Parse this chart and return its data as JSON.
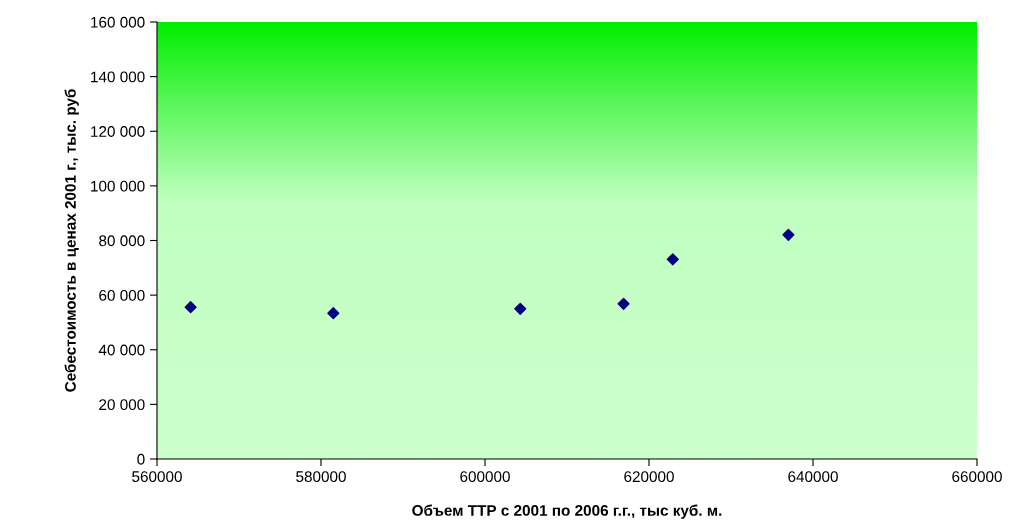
{
  "chart_data": {
    "type": "scatter",
    "xlabel": "Объем ТТР с 2001 по 2006 г.г., тыс куб. м.",
    "ylabel": "Себестоимость в ценах 2001 г., тыс. руб",
    "x": [
      564100,
      581500,
      604300,
      616900,
      622900,
      637000
    ],
    "series": [
      {
        "color": "#000080",
        "values": [
          55600,
          53400,
          55000,
          56800,
          73100,
          82100
        ]
      }
    ],
    "marker": "diamond",
    "grid": false,
    "legend": false,
    "xlim": [
      560000,
      660000
    ],
    "xticks": [
      560000,
      580000,
      600000,
      620000,
      640000,
      660000
    ],
    "ylim": [
      0,
      160000
    ],
    "yticks": [
      {
        "value": 0,
        "label": "0"
      },
      {
        "value": 20000,
        "label": "20 000"
      },
      {
        "value": 40000,
        "label": "40 000"
      },
      {
        "value": 60000,
        "label": "60 000"
      },
      {
        "value": 80000,
        "label": "80 000"
      },
      {
        "value": 100000,
        "label": "100 000"
      },
      {
        "value": 120000,
        "label": "120 000"
      },
      {
        "value": 140000,
        "label": "140 000"
      },
      {
        "value": 160000,
        "label": "160 000"
      }
    ]
  }
}
